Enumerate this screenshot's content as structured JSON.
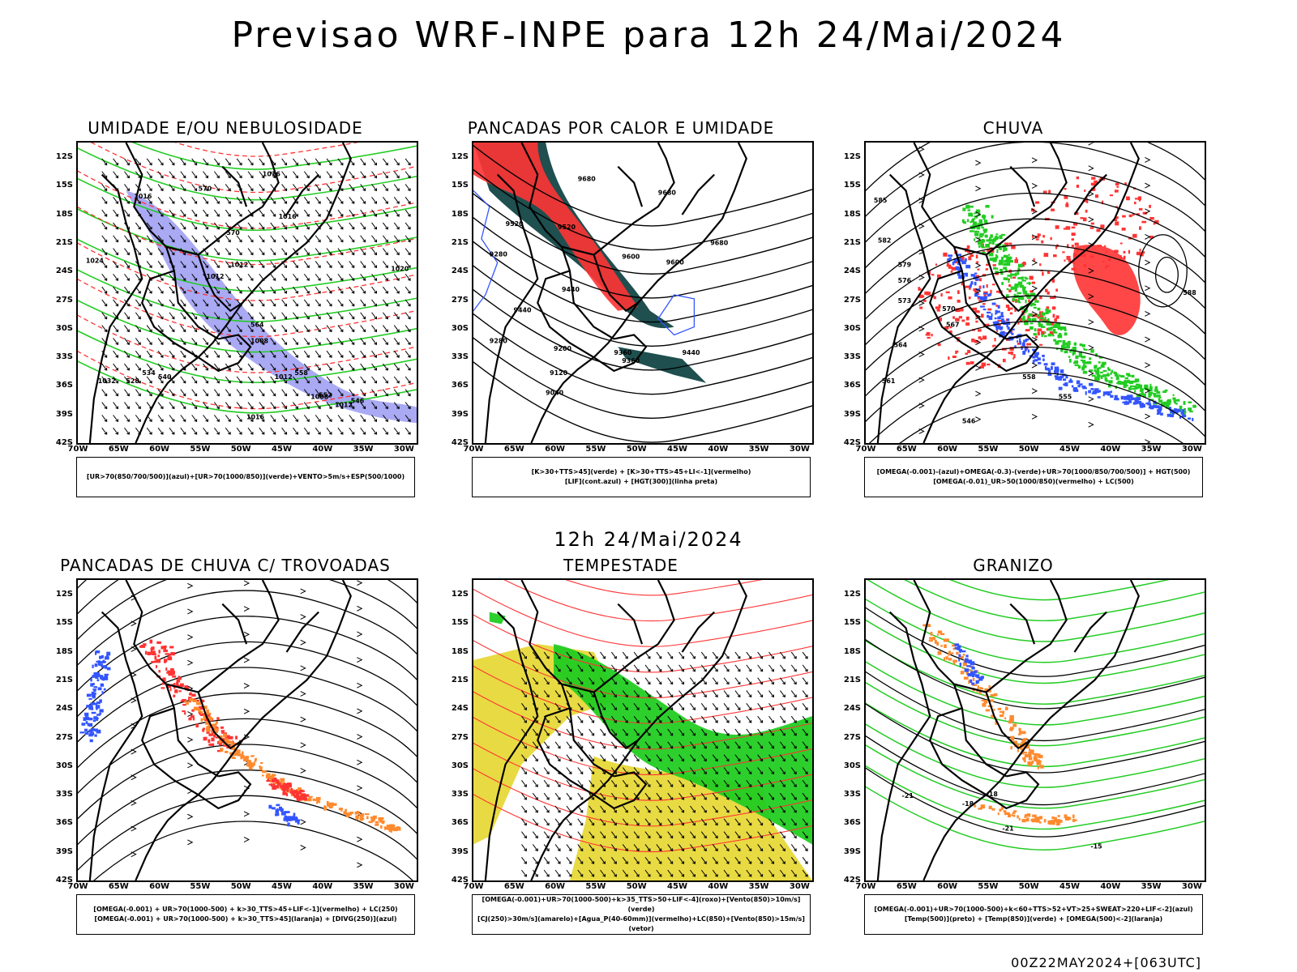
{
  "main_title": "Previsao WRF-INPE  para 12h 24/Mai/2024",
  "mid_title": "12h 24/Mai/2024",
  "footer_stamp": "00Z22MAY2024+[063UTC]",
  "lat_ticks": [
    "12S",
    "15S",
    "18S",
    "21S",
    "24S",
    "27S",
    "30S",
    "33S",
    "36S",
    "39S",
    "42S"
  ],
  "lon_ticks": [
    "70W",
    "65W",
    "60W",
    "55W",
    "50W",
    "45W",
    "40W",
    "35W",
    "30W"
  ],
  "panels": [
    {
      "title": "UMIDADE E/OU NEBULOSIDADE",
      "legend": [
        "[UR>70(850/700/500)](azul)+[UR>70(1000/850)](verde)+VENTO>5m/s+ESP(500/1000)"
      ],
      "contour_labels": [
        "1016",
        "1016",
        "1016",
        "1012",
        "1012",
        "1008",
        "1012",
        "1008",
        "1012",
        "1016",
        "1020",
        "1024",
        "1032",
        "570",
        "570",
        "564",
        "558",
        "552",
        "546",
        "540",
        "534",
        "528"
      ]
    },
    {
      "title": "PANCADAS POR CALOR E UMIDADE",
      "legend": [
        "[K>30+TTS>45](verde) + [K>30+TTS>45+LI<-1](vermelho)",
        "[LIF](cont.azul) + [HGT(300)](linha preta)"
      ],
      "contour_labels": [
        "9680",
        "9680",
        "9680",
        "9600",
        "9600",
        "9520",
        "9520",
        "9440",
        "9440",
        "9360",
        "9360",
        "9280",
        "9280",
        "9200",
        "9120",
        "9040",
        "9440"
      ]
    },
    {
      "title": "CHUVA",
      "legend": [
        "[OMEGA(-0.001)-(azul)+OMEGA(-0.3)-(verde)+UR>70(1000/850/700/500)] + HGT(500)",
        "[OMEGA(-0.01)_UR>50(1000/850)(vermelho) + LC(500)"
      ],
      "contour_labels": [
        "588",
        "585",
        "582",
        "579",
        "576",
        "573",
        "570",
        "567",
        "564",
        "561",
        "558",
        "555",
        "546"
      ]
    },
    {
      "title": "PANCADAS DE CHUVA C/ TROVOADAS",
      "legend": [
        "[OMEGA(-0.001) + UR>70(1000-500) + k>30_TTS>45+LIF<-1](vermelho) + LC(250)",
        "[OMEGA(-0.001) + UR>70(1000-500) + k>30_TTS>45](laranja) + [DIVG(250)](azul)"
      ],
      "contour_labels": []
    },
    {
      "title": "TEMPESTADE",
      "legend": [
        "[OMEGA(-0.001)+UR>70(1000-500)+k>35_TTS>50+LIF<-4](roxo)+[Vento(850)>10m/s](verde)",
        "[CJ(250)>30m/s](amarelo)+[Agua_P(40-60mm)](vermelho)+LC(850)+[Vento(850)>15m/s](vetor)"
      ],
      "contour_labels": []
    },
    {
      "title": "GRANIZO",
      "legend": [
        "[OMEGA(-0.001)+UR>70(1000-500)+k<60+TTS>52+VT>25+SWEAT>220+LIF<-2](azul)",
        "[Temp(500)](preto) + [Temp(850)](verde) + [OMEGA(500)<-2](laranja)"
      ],
      "contour_labels": [
        "-21",
        "-18",
        "-21",
        "-18",
        "-15"
      ]
    }
  ],
  "colors": {
    "red": "#ff3333",
    "green": "#22cc22",
    "blue": "#3355ff",
    "purple": "#8c8cf0",
    "darkteal": "#1f4f4f",
    "yellow": "#e6d62e",
    "orange": "#ff8a2e",
    "black": "#000000"
  }
}
